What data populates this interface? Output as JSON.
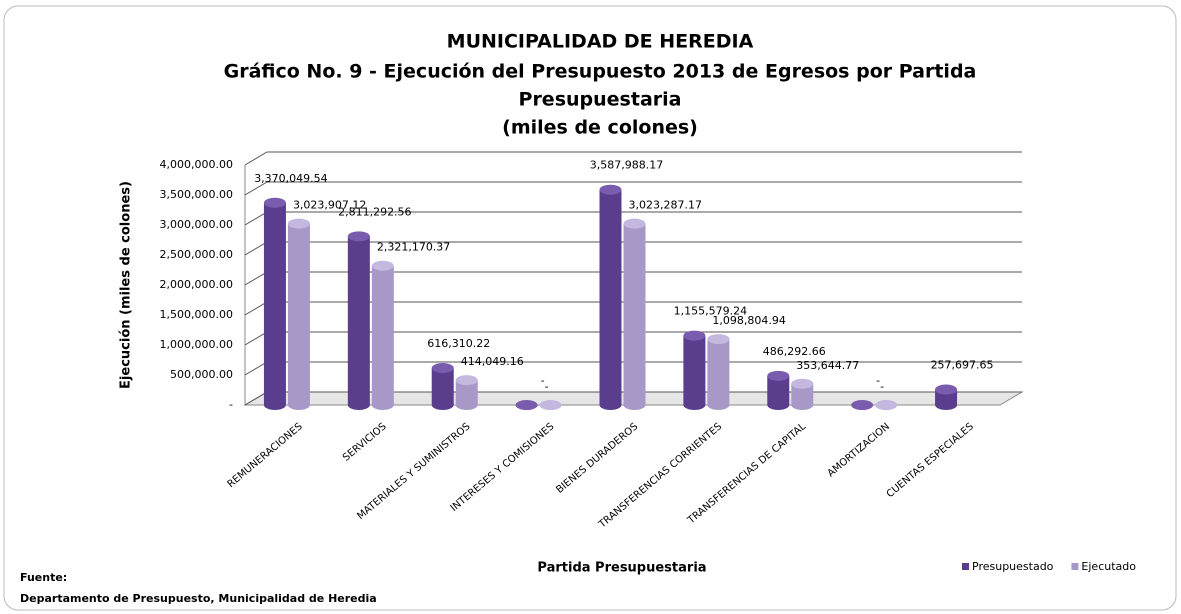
{
  "chart_data": {
    "type": "bar",
    "title": "MUNICIPALIDAD DE HEREDIA",
    "subtitle": [
      "Gráfico No. 9 - Ejecución del Presupuesto 2013 de Egresos por Partida",
      "Presupuestaria",
      "(miles de colones)"
    ],
    "x_label": "Partida Presupuestaria",
    "y_label": "Ejecución (miles de colones)",
    "categories": [
      "REMUNERACIONES",
      "SERVICIOS",
      "MATERIALES Y SUMINISTROS",
      "INTERESES Y COMISIONES",
      "BIENES DURADEROS",
      "TRANSFERENCIAS CORRIENTES",
      "TRANSFERENCIAS DE CAPITAL",
      "AMORTIZACION",
      "CUENTAS ESPECIALES"
    ],
    "series": [
      {
        "name": "Presupuestado",
        "color": "#5a3d8c",
        "values": [
          3370049.54,
          2811292.56,
          616310.22,
          0,
          3587988.17,
          1155579.24,
          486292.66,
          0,
          257697.65
        ],
        "value_labels": [
          "3,370,049.54",
          "2,811,292.56",
          "616,310.22",
          "-",
          "3,587,988.17",
          "1,155,579.24",
          "486,292.66",
          "-",
          "257,697.65"
        ]
      },
      {
        "name": "Ejecutado",
        "color": "#a898c8",
        "values": [
          3023907.12,
          2321170.37,
          414049.16,
          0,
          3023287.17,
          1098804.94,
          353644.77,
          0,
          null
        ],
        "value_labels": [
          "3,023,907.12",
          "2,321,170.37",
          "414,049.16",
          "-",
          "3,023,287.17",
          "1,098,804.94",
          "353,644.77",
          "-",
          null
        ]
      }
    ],
    "ylim": [
      0,
      4000000
    ],
    "yticks": [
      {
        "value": 0,
        "label": "-"
      },
      {
        "value": 500000,
        "label": "500,000.00"
      },
      {
        "value": 1000000,
        "label": "1,000,000.00"
      },
      {
        "value": 1500000,
        "label": "1,500,000.00"
      },
      {
        "value": 2000000,
        "label": "2,000,000.00"
      },
      {
        "value": 2500000,
        "label": "2,500,000.00"
      },
      {
        "value": 3000000,
        "label": "3,000,000.00"
      },
      {
        "value": 3500000,
        "label": "3,500,000.00"
      },
      {
        "value": 4000000,
        "label": "4,000,000.00"
      }
    ],
    "grid": true,
    "legend": "bottom-right",
    "source": [
      "Fuente:",
      "Departamento de Presupuesto, Municipalidad de Heredia"
    ]
  }
}
